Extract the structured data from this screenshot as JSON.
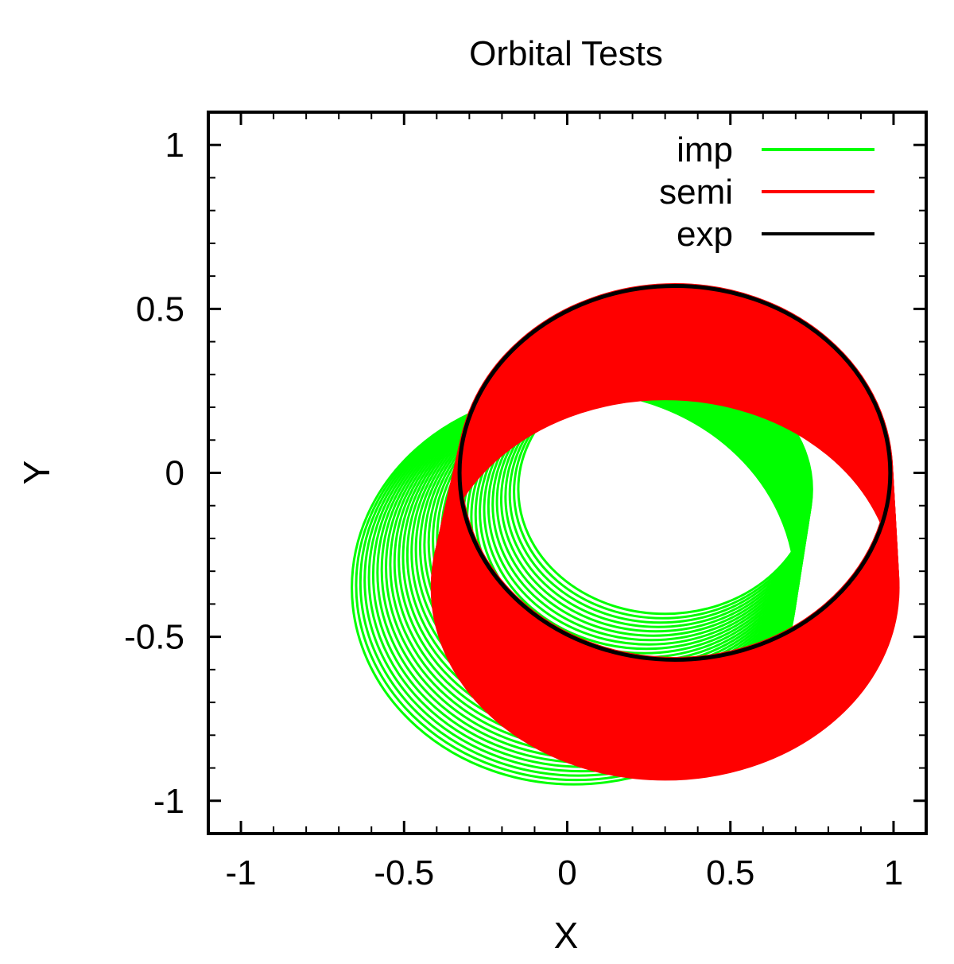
{
  "chart_data": {
    "type": "line",
    "title": "Orbital Tests",
    "xlabel": "X",
    "ylabel": "Y",
    "xlim": [
      -1.1,
      1.1
    ],
    "ylim": [
      -1.1,
      1.1
    ],
    "xticks": [
      -1,
      -0.5,
      0,
      0.5,
      1
    ],
    "yticks": [
      -1,
      -0.5,
      0,
      0.5,
      1
    ],
    "xtick_labels": [
      "-1",
      "-0.5",
      "0",
      "0.5",
      "1"
    ],
    "ytick_labels": [
      "-1",
      "-0.5",
      "0",
      "0.5",
      "1"
    ],
    "grid": false,
    "legend_position": "top-right",
    "series": [
      {
        "name": "imp",
        "color": "#00ff00",
        "description_kind": "precessing-orbit-family",
        "orbit_first": {
          "center": [
            0.3,
            -0.05
          ],
          "radii": [
            0.45,
            0.38
          ]
        },
        "orbit_last": {
          "center": [
            0.02,
            -0.35
          ],
          "radii": [
            0.68,
            0.6
          ]
        },
        "orbit_count": 40
      },
      {
        "name": "semi",
        "color": "#ff0000",
        "description_kind": "precessing-orbit-family",
        "orbit_first": {
          "center": [
            0.33,
            0.0
          ],
          "radii": [
            0.66,
            0.57
          ]
        },
        "orbit_last": {
          "center": [
            0.3,
            -0.35
          ],
          "radii": [
            0.71,
            0.58
          ]
        },
        "orbit_count": 60
      },
      {
        "name": "exp",
        "color": "#000000",
        "description_kind": "single-orbit",
        "orbit": {
          "center": [
            0.33,
            0.0
          ],
          "radii": [
            0.66,
            0.57
          ]
        }
      }
    ]
  }
}
